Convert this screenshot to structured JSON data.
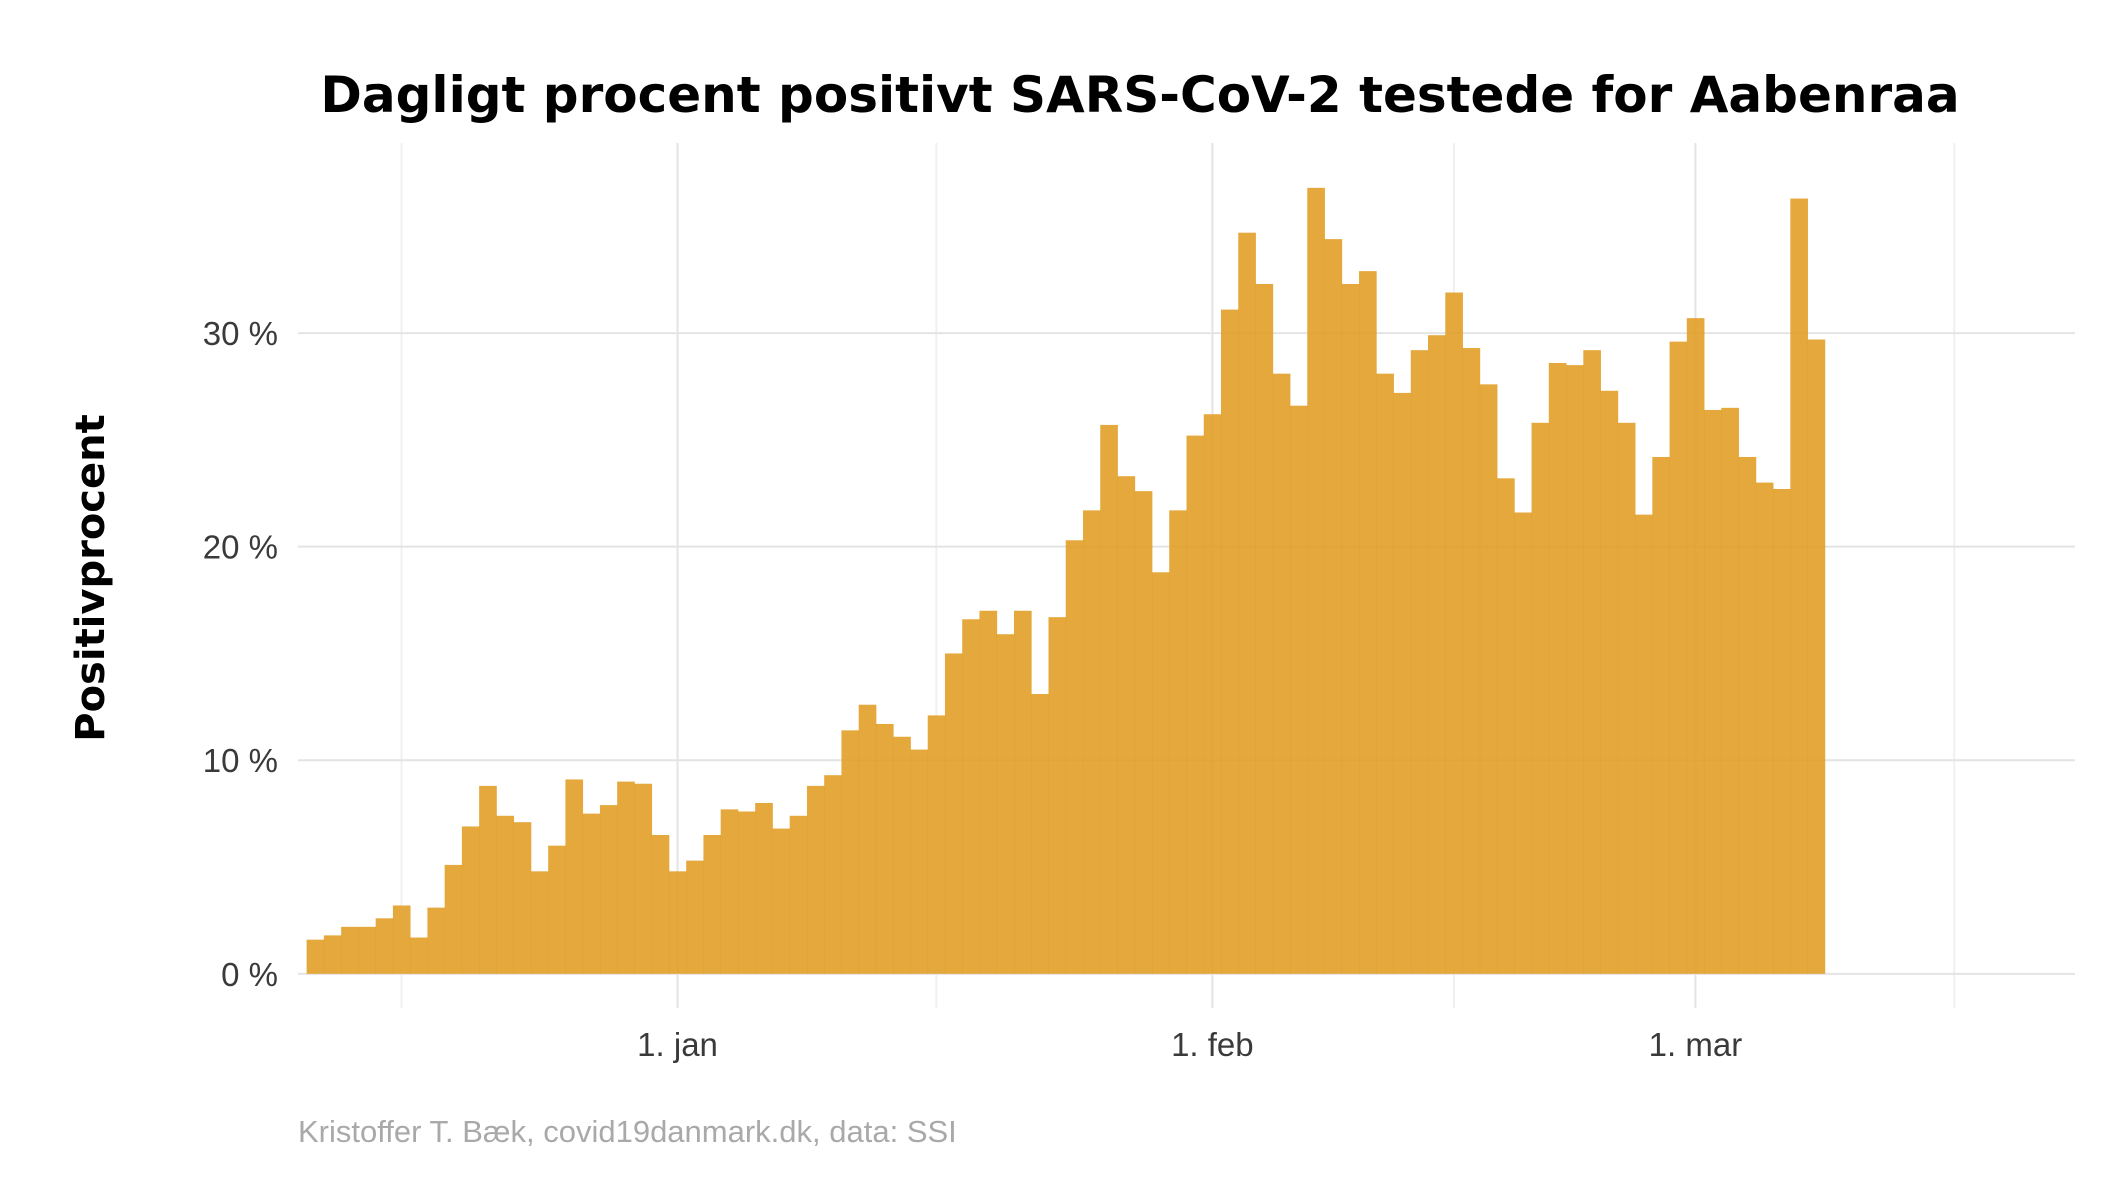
{
  "chart_data": {
    "type": "bar",
    "title": "Dagligt procent positivt SARS-CoV-2 testede for Aabenraa",
    "xlabel": "",
    "ylabel": "Positivprocent",
    "caption": "Kristoffer T. Bæk, covid19danmark.dk, data: SSI",
    "color": "#e19c21",
    "start_date": "2020-12-11",
    "x_range": [
      "2020-12-10",
      "2021-03-23"
    ],
    "xticks": [
      {
        "date": "2021-01-01",
        "label": "1. jan"
      },
      {
        "date": "2021-02-01",
        "label": "1. feb"
      },
      {
        "date": "2021-03-01",
        "label": "1. mar"
      }
    ],
    "x_minor_dates": [
      "2020-12-16",
      "2021-01-16",
      "2021-02-15",
      "2021-03-16"
    ],
    "yticks": [
      {
        "value": 0,
        "label": "0 %"
      },
      {
        "value": 10,
        "label": "10 %"
      },
      {
        "value": 20,
        "label": "20 %"
      },
      {
        "value": 30,
        "label": "30 %"
      }
    ],
    "ylim": [
      -1.6,
      38.9
    ],
    "values": [
      1.6,
      1.8,
      2.2,
      2.2,
      2.6,
      3.2,
      1.7,
      3.1,
      5.1,
      6.9,
      8.8,
      7.4,
      7.1,
      4.8,
      6.0,
      9.1,
      7.5,
      7.9,
      9.0,
      8.9,
      6.5,
      4.8,
      5.3,
      6.5,
      7.7,
      7.6,
      8.0,
      6.8,
      7.4,
      8.8,
      9.3,
      11.4,
      12.6,
      11.7,
      11.1,
      10.5,
      12.1,
      15.0,
      16.6,
      17.0,
      15.9,
      17.0,
      13.1,
      16.7,
      20.3,
      21.7,
      25.7,
      23.3,
      22.6,
      18.8,
      21.7,
      25.2,
      26.2,
      31.1,
      34.7,
      32.3,
      28.1,
      26.6,
      36.8,
      34.4,
      32.3,
      32.9,
      28.1,
      27.2,
      29.2,
      29.9,
      31.9,
      29.3,
      27.6,
      23.2,
      21.6,
      25.8,
      28.6,
      28.5,
      29.2,
      27.3,
      25.8,
      21.5,
      24.2,
      29.6,
      30.7,
      26.4,
      26.5,
      24.2,
      23.0,
      22.7,
      36.3,
      29.7
    ]
  }
}
